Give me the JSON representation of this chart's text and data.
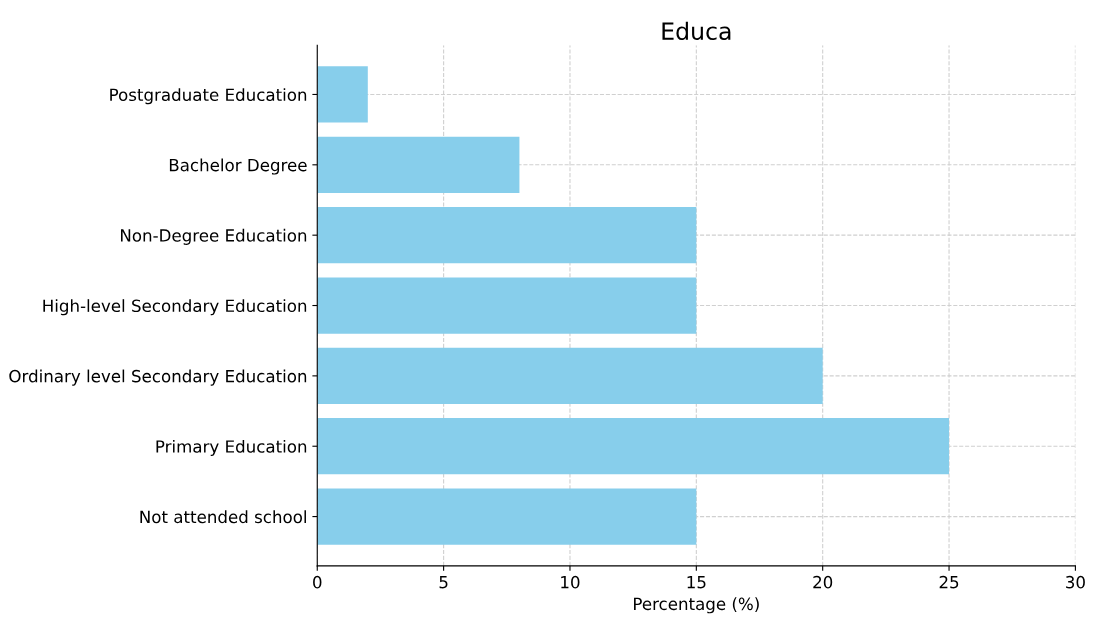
{
  "chart_data": {
    "type": "bar",
    "orientation": "horizontal",
    "title": "Educa",
    "xlabel": "Percentage (%)",
    "categories": [
      "Postgraduate Education",
      "Bachelor Degree",
      "Non-Degree Education",
      "High-level Secondary Education",
      "Ordinary level Secondary Education",
      "Primary Education",
      "Not attended school"
    ],
    "values": [
      2,
      8,
      15,
      15,
      20,
      25,
      15
    ],
    "color": "#87ceeb",
    "xlim": [
      0,
      30
    ],
    "xticks": [
      0,
      5,
      10,
      15,
      20,
      25,
      30
    ],
    "grid": true
  }
}
